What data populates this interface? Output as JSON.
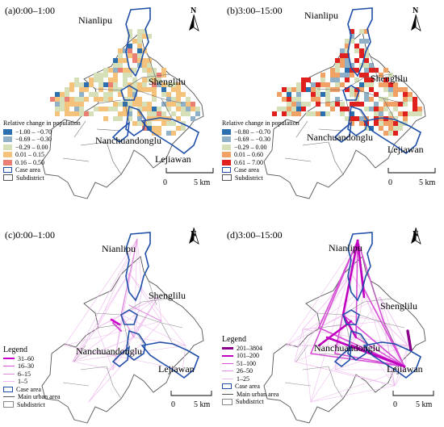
{
  "panels": [
    {
      "id": "a",
      "title": "(a)0:00–1:00",
      "places": {
        "north": "Nianlipu",
        "east": "Shenglilu",
        "southwest": "Nanchuandonglu",
        "southeast": "Lejiawan"
      },
      "north_label": "N",
      "legend": {
        "title": "Relative change in population",
        "items": [
          {
            "label": "−1.00 – −0.70",
            "color": "#2b6fae"
          },
          {
            "label": "−0.69 – −0.30",
            "color": "#8fb0c6"
          },
          {
            "label": "−0.29 – 0.00",
            "color": "#d5e0b9"
          },
          {
            "label": "0.01 – 0.15",
            "color": "#f4c27a"
          },
          {
            "label": "0.16 – 0.50",
            "color": "#ec7f74"
          },
          {
            "label": "Case area",
            "color": "#1f4fa8"
          },
          {
            "label": "Subdistrict",
            "color": "#555555"
          }
        ]
      },
      "scale": {
        "zero": "0",
        "end": "5 km"
      }
    },
    {
      "id": "b",
      "title": "(b)3:00–15:00",
      "places": {
        "north": "Nianlipu",
        "east": "Shenglilu",
        "southwest": "Nanchuandonglu",
        "southeast": "Lejiawan"
      },
      "north_label": "N",
      "legend": {
        "title": "Relative change in population",
        "items": [
          {
            "label": "−0.80 – −0.70",
            "color": "#2b6fae"
          },
          {
            "label": "−0.69 – −0.30",
            "color": "#8fb0c6"
          },
          {
            "label": "−0.29 – 0.00",
            "color": "#d5e0b9"
          },
          {
            "label": "0.01 – 0.60",
            "color": "#f2a166"
          },
          {
            "label": "0.61 – 7.00",
            "color": "#e0201c"
          },
          {
            "label": "Case area",
            "color": "#1f4fa8"
          },
          {
            "label": "Subdistrict",
            "color": "#555555"
          }
        ]
      },
      "scale": {
        "zero": "0",
        "end": "5 km"
      }
    },
    {
      "id": "c",
      "title": "(c)0:00–1:00",
      "places": {
        "north": "Nianlipu",
        "east": "Shenglilu",
        "southwest": "Nanchuandonglu",
        "southeast": "Lejiawan"
      },
      "north_label": "N",
      "legend": {
        "title": "Legend",
        "items": [
          {
            "label": "31–60",
            "color": "#cc00cc",
            "width": 2.5
          },
          {
            "label": "16–30",
            "color": "#d84fd8",
            "width": 1.8
          },
          {
            "label": "6–15",
            "color": "#e08be0",
            "width": 1.2
          },
          {
            "label": "1–5",
            "color": "#edb8ed",
            "width": 0.8
          },
          {
            "label": "Case area",
            "color": "#1f4fa8"
          },
          {
            "label": "Main urban area",
            "color": "#555555"
          },
          {
            "label": "Subdistrict",
            "color": "#888888"
          }
        ]
      },
      "scale": {
        "zero": "0",
        "end": "5 km"
      }
    },
    {
      "id": "d",
      "title": "(d)3:00–15:00",
      "places": {
        "north": "Nianlipu",
        "east": "Shenglilu",
        "southwest": "Nanchuandonglu",
        "southeast": "Lejiawan"
      },
      "north_label": "N",
      "legend": {
        "title": "Legend",
        "items": [
          {
            "label": "201–3804",
            "color": "#8b008b",
            "width": 3.2
          },
          {
            "label": "101–200",
            "color": "#c000c0",
            "width": 2.4
          },
          {
            "label": "51–100",
            "color": "#d64fd6",
            "width": 1.7
          },
          {
            "label": "26–50",
            "color": "#e290e2",
            "width": 1.1
          },
          {
            "label": "1–25",
            "color": "#eebcee",
            "width": 0.7
          },
          {
            "label": "Case area",
            "color": "#1f4fa8"
          },
          {
            "label": "Main urban area",
            "color": "#555555"
          },
          {
            "label": "Subdistrict",
            "color": "#888888"
          }
        ]
      },
      "scale": {
        "zero": "0",
        "end": "5 km"
      }
    }
  ]
}
